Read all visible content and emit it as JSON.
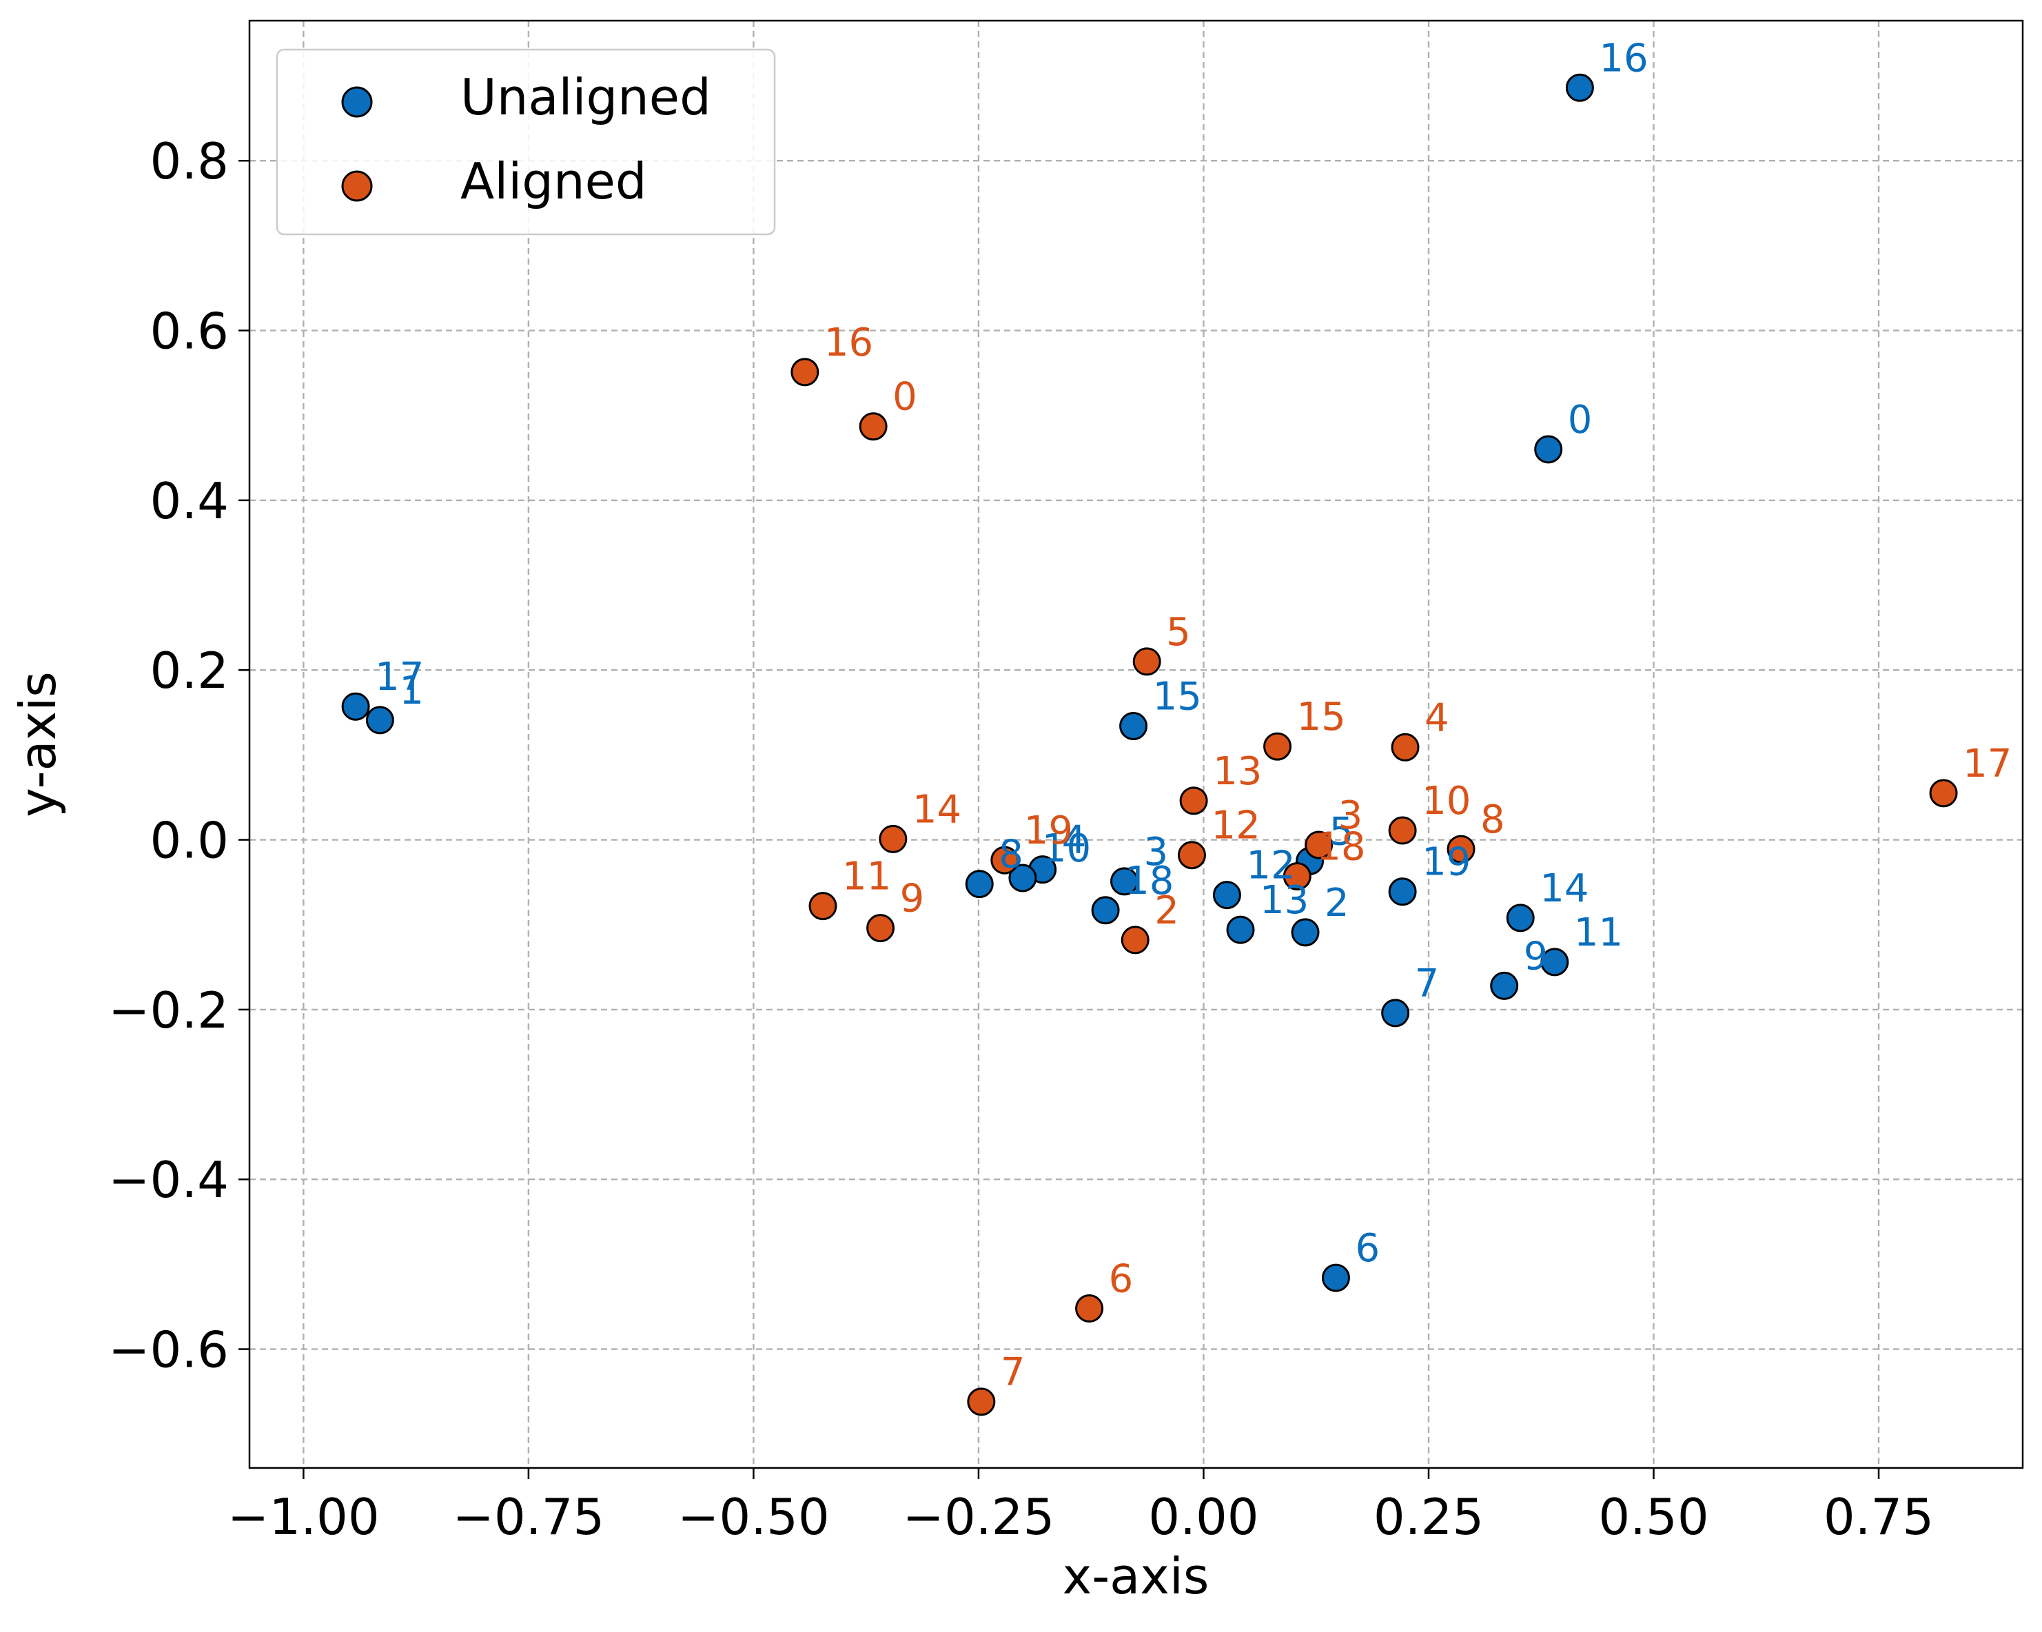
{
  "chart_data": {
    "type": "scatter",
    "xlabel": "x-axis",
    "ylabel": "y-axis",
    "xlim": [
      -1.06,
      0.91
    ],
    "ylim": [
      -0.74,
      0.965
    ],
    "grid": true,
    "legend_position": "top-left",
    "x_ticks": [
      -1.0,
      -0.75,
      -0.5,
      -0.25,
      0.0,
      0.25,
      0.5,
      0.75
    ],
    "x_tick_labels": [
      "−1.00",
      "−0.75",
      "−0.50",
      "−0.25",
      "0.00",
      "0.25",
      "0.50",
      "0.75"
    ],
    "y_ticks": [
      -0.6,
      -0.4,
      -0.2,
      0.0,
      0.2,
      0.4,
      0.6,
      0.8
    ],
    "y_tick_labels": [
      "−0.6",
      "−0.4",
      "−0.2",
      "0.0",
      "0.2",
      "0.4",
      "0.6",
      "0.8"
    ],
    "series": [
      {
        "name": "Unaligned",
        "color": "#0a6ebd",
        "points": [
          {
            "label": "0",
            "x": 0.383,
            "y": 0.46
          },
          {
            "label": "1",
            "x": -0.915,
            "y": 0.141
          },
          {
            "label": "2",
            "x": 0.113,
            "y": -0.109
          },
          {
            "label": "3",
            "x": -0.088,
            "y": -0.049
          },
          {
            "label": "4",
            "x": -0.179,
            "y": -0.035
          },
          {
            "label": "5",
            "x": 0.118,
            "y": -0.025
          },
          {
            "label": "6",
            "x": 0.147,
            "y": -0.516
          },
          {
            "label": "7",
            "x": 0.213,
            "y": -0.204
          },
          {
            "label": "8",
            "x": -0.249,
            "y": -0.052
          },
          {
            "label": "9",
            "x": 0.334,
            "y": -0.172
          },
          {
            "label": "10",
            "x": -0.201,
            "y": -0.045
          },
          {
            "label": "11",
            "x": 0.39,
            "y": -0.144
          },
          {
            "label": "12",
            "x": 0.026,
            "y": -0.065
          },
          {
            "label": "13",
            "x": 0.041,
            "y": -0.106
          },
          {
            "label": "14",
            "x": 0.352,
            "y": -0.092
          },
          {
            "label": "15",
            "x": -0.078,
            "y": 0.134
          },
          {
            "label": "16",
            "x": 0.418,
            "y": 0.886
          },
          {
            "label": "17",
            "x": -0.942,
            "y": 0.157
          },
          {
            "label": "18",
            "x": -0.109,
            "y": -0.083
          },
          {
            "label": "19",
            "x": 0.221,
            "y": -0.061
          }
        ]
      },
      {
        "name": "Aligned",
        "color": "#d95319",
        "points": [
          {
            "label": "0",
            "x": -0.367,
            "y": 0.487
          },
          {
            "label": "2",
            "x": -0.076,
            "y": -0.118
          },
          {
            "label": "3",
            "x": 0.128,
            "y": -0.006
          },
          {
            "label": "4",
            "x": 0.224,
            "y": 0.109
          },
          {
            "label": "5",
            "x": -0.063,
            "y": 0.21
          },
          {
            "label": "6",
            "x": -0.127,
            "y": -0.552
          },
          {
            "label": "7",
            "x": -0.247,
            "y": -0.662
          },
          {
            "label": "8",
            "x": 0.286,
            "y": -0.011
          },
          {
            "label": "9",
            "x": -0.359,
            "y": -0.104
          },
          {
            "label": "10",
            "x": 0.221,
            "y": 0.011
          },
          {
            "label": "11",
            "x": -0.423,
            "y": -0.078
          },
          {
            "label": "12",
            "x": -0.013,
            "y": -0.018
          },
          {
            "label": "13",
            "x": -0.011,
            "y": 0.046
          },
          {
            "label": "14",
            "x": -0.345,
            "y": 0.001
          },
          {
            "label": "15",
            "x": 0.082,
            "y": 0.11
          },
          {
            "label": "16",
            "x": -0.443,
            "y": 0.551
          },
          {
            "label": "17",
            "x": 0.822,
            "y": 0.055
          },
          {
            "label": "18",
            "x": 0.104,
            "y": -0.043
          },
          {
            "label": "19",
            "x": -0.221,
            "y": -0.024
          }
        ]
      }
    ]
  }
}
